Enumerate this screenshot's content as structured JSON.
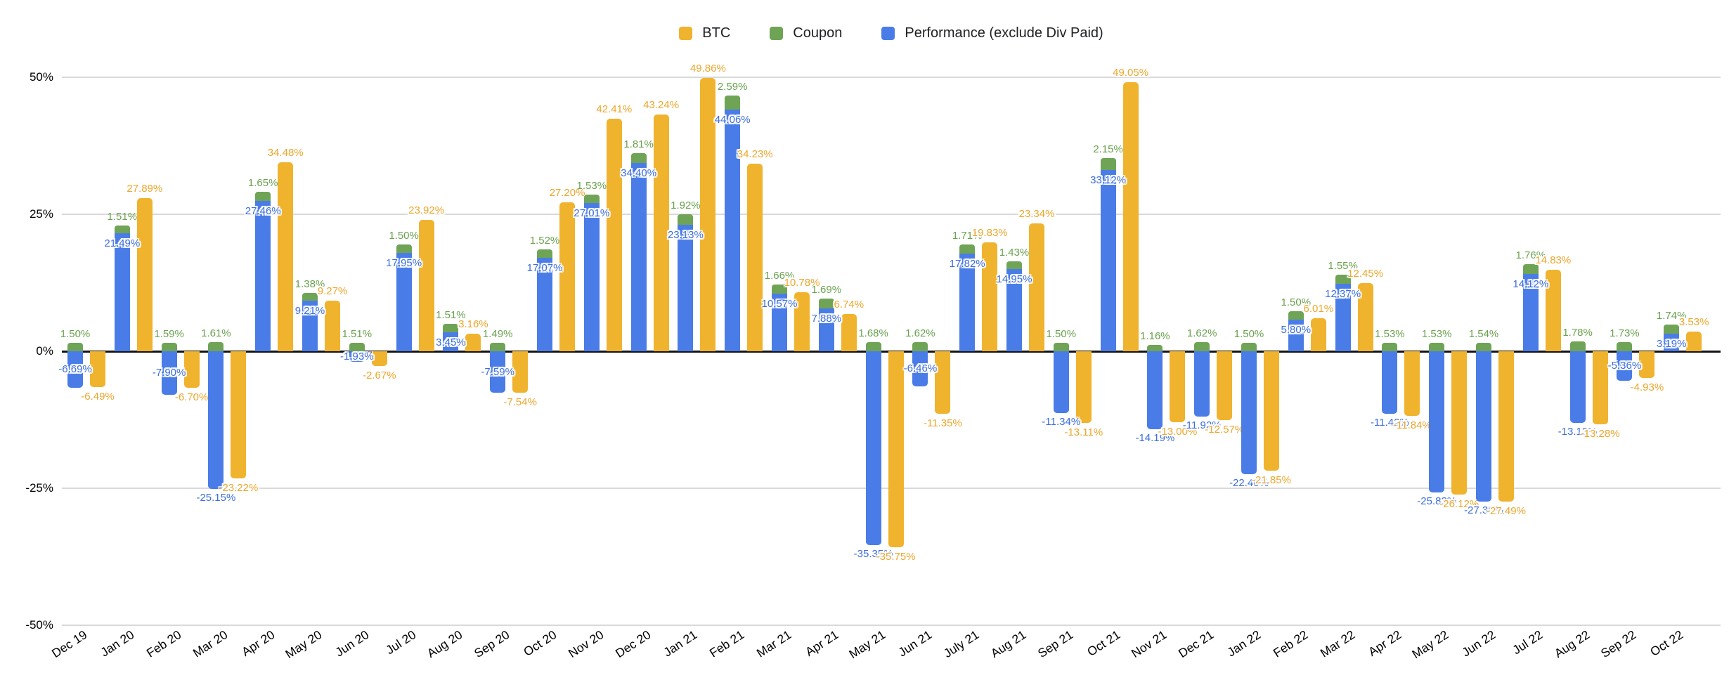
{
  "legend": {
    "position": "top-center",
    "items": [
      {
        "label": "BTC"
      },
      {
        "label": "Coupon"
      },
      {
        "label": "Performance (exclude Div Paid)"
      }
    ]
  },
  "y_axis": {
    "ticks": [
      "50%",
      "25%",
      "0%",
      "-25%",
      "-50%"
    ],
    "tick_values": [
      50,
      25,
      0,
      -25,
      -50
    ]
  },
  "colors": {
    "btc_bar": "#F0B32E",
    "coupon_bar": "#6FA456",
    "performance_bar": "#4A7CE8",
    "btc_label": "#EDA62C",
    "coupon_label": "#69A14E",
    "performance_label": "#3D6EDE",
    "gridline": "#d9d9d9",
    "zero_axis": "#141414"
  },
  "chart_data": {
    "type": "bar",
    "title": "",
    "xlabel": "",
    "ylabel": "",
    "ylim": [
      -50,
      50
    ],
    "grid": true,
    "legend_position": "top",
    "bar_grouping": "Coupon stacked on top of Performance in one column; BTC as separate adjacent column",
    "label_format": "0.00%",
    "categories": [
      "Dec 19",
      "Jan 20",
      "Feb 20",
      "Mar 20",
      "Apr 20",
      "May 20",
      "Jun 20",
      "Jul 20",
      "Aug 20",
      "Sep 20",
      "Oct 20",
      "Nov 20",
      "Dec 20",
      "Jan 21",
      "Feb 21",
      "Mar 21",
      "Apr 21",
      "May 21",
      "Jun 21",
      "July 21",
      "Aug 21",
      "Sep 21",
      "Oct 21",
      "Nov 21",
      "Dec 21",
      "Jan 22",
      "Feb 22",
      "Mar 22",
      "Apr 22",
      "May 22",
      "Jun 22",
      "Jul 22",
      "Aug 22",
      "Sep 22",
      "Oct 22"
    ],
    "series": [
      {
        "name": "BTC",
        "color": "#F0B32E",
        "values": [
          -6.49,
          27.89,
          -6.7,
          -23.22,
          34.48,
          9.27,
          -2.67,
          23.92,
          3.16,
          -7.54,
          27.2,
          42.41,
          43.24,
          49.86,
          34.23,
          10.78,
          6.74,
          -35.75,
          -11.35,
          19.83,
          23.34,
          -13.11,
          49.05,
          -13.0,
          -12.57,
          -21.85,
          6.01,
          12.45,
          -11.84,
          -26.12,
          -27.49,
          14.83,
          -13.28,
          -4.93,
          3.53
        ]
      },
      {
        "name": "Coupon",
        "color": "#6FA456",
        "values": [
          1.5,
          1.51,
          1.59,
          1.61,
          1.65,
          1.38,
          1.51,
          1.5,
          1.51,
          1.49,
          1.52,
          1.53,
          1.81,
          1.92,
          2.59,
          1.66,
          1.69,
          1.68,
          1.62,
          1.71,
          1.43,
          1.5,
          2.15,
          1.16,
          1.62,
          1.5,
          1.5,
          1.55,
          1.53,
          1.53,
          1.54,
          1.76,
          1.78,
          1.73,
          1.74
        ]
      },
      {
        "name": "Performance (exclude Div Paid)",
        "color": "#4A7CE8",
        "values": [
          -6.69,
          21.49,
          -7.9,
          -25.15,
          27.46,
          9.21,
          -1.93,
          17.95,
          3.45,
          -7.59,
          17.07,
          27.01,
          34.4,
          23.13,
          44.06,
          10.57,
          7.88,
          -35.35,
          -6.46,
          17.82,
          14.95,
          -11.34,
          33.12,
          -14.19,
          -11.92,
          -22.4,
          5.8,
          12.37,
          -11.42,
          -25.83,
          -27.38,
          14.12,
          -13.13,
          -5.36,
          3.19
        ]
      }
    ]
  }
}
